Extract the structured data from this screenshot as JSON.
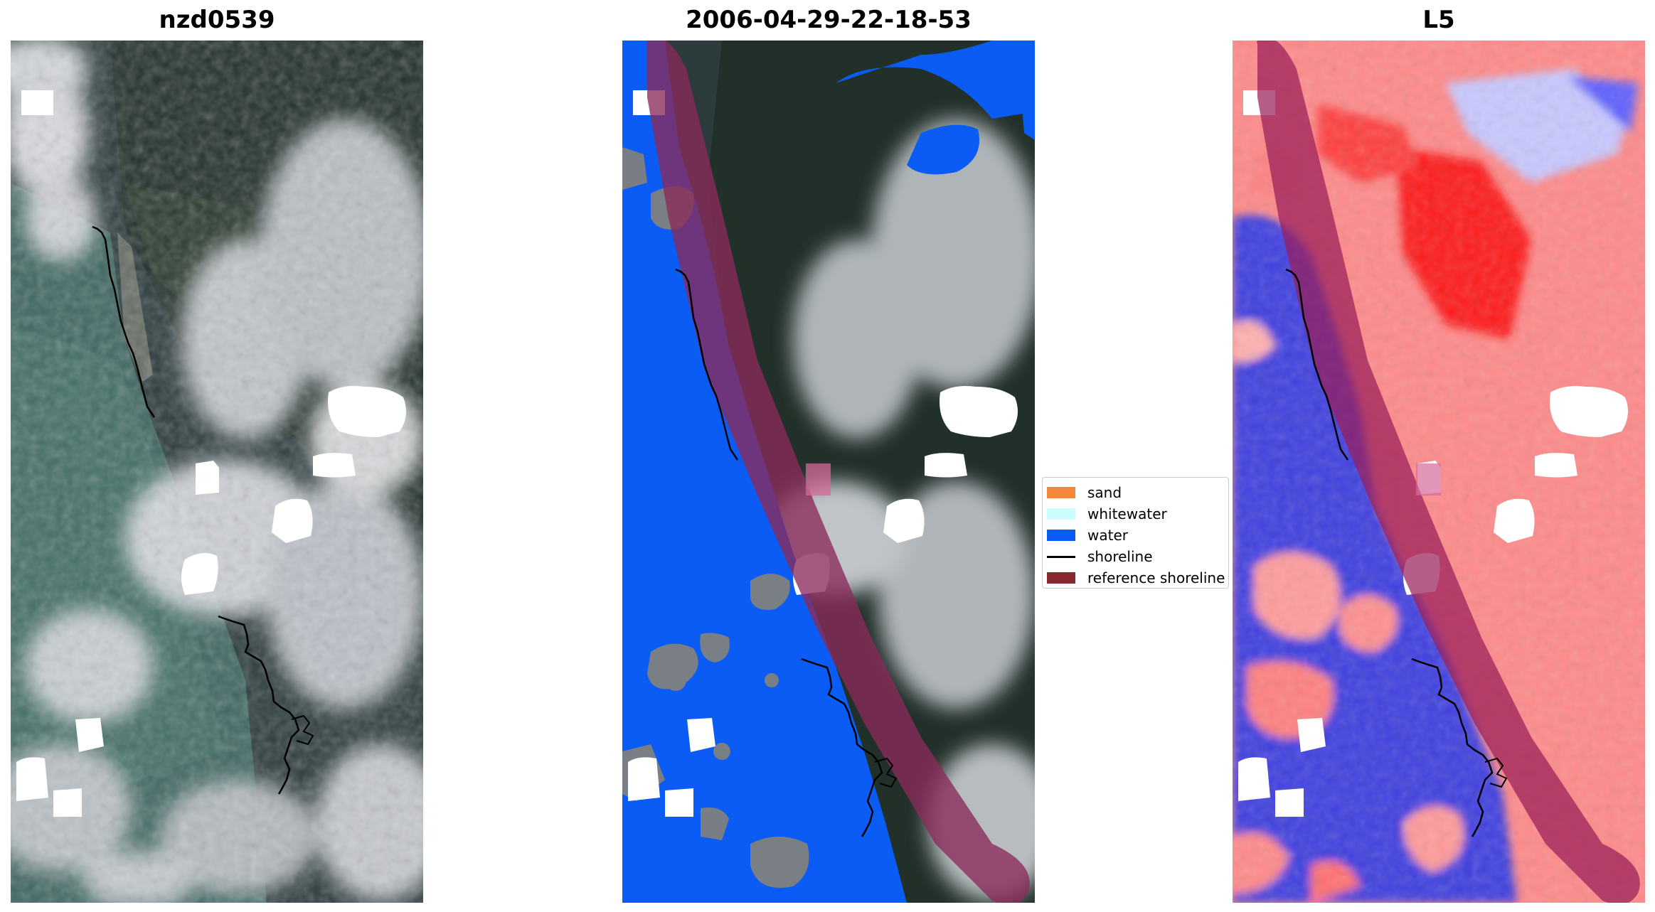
{
  "panels": [
    {
      "title": "nzd0539"
    },
    {
      "title": "2006-04-29-22-18-53"
    },
    {
      "title": "L5"
    }
  ],
  "legend": {
    "items": [
      {
        "label": "sand",
        "color": "#f4873b",
        "kind": "patch"
      },
      {
        "label": "whitewater",
        "color": "#ccfdfe",
        "kind": "patch"
      },
      {
        "label": "water",
        "color": "#0a5cf5",
        "kind": "patch"
      },
      {
        "label": "shoreline",
        "color": "#000000",
        "kind": "line"
      },
      {
        "label": "reference shoreline",
        "color": "#8b2a2e",
        "kind": "patch"
      }
    ]
  },
  "colors": {
    "water": "#0a5cf5",
    "reference_shoreline": "#8b2a2e",
    "index_positive": "#ff0000",
    "index_negative": "#0000ff",
    "cloud_mask": "#ffffff"
  }
}
